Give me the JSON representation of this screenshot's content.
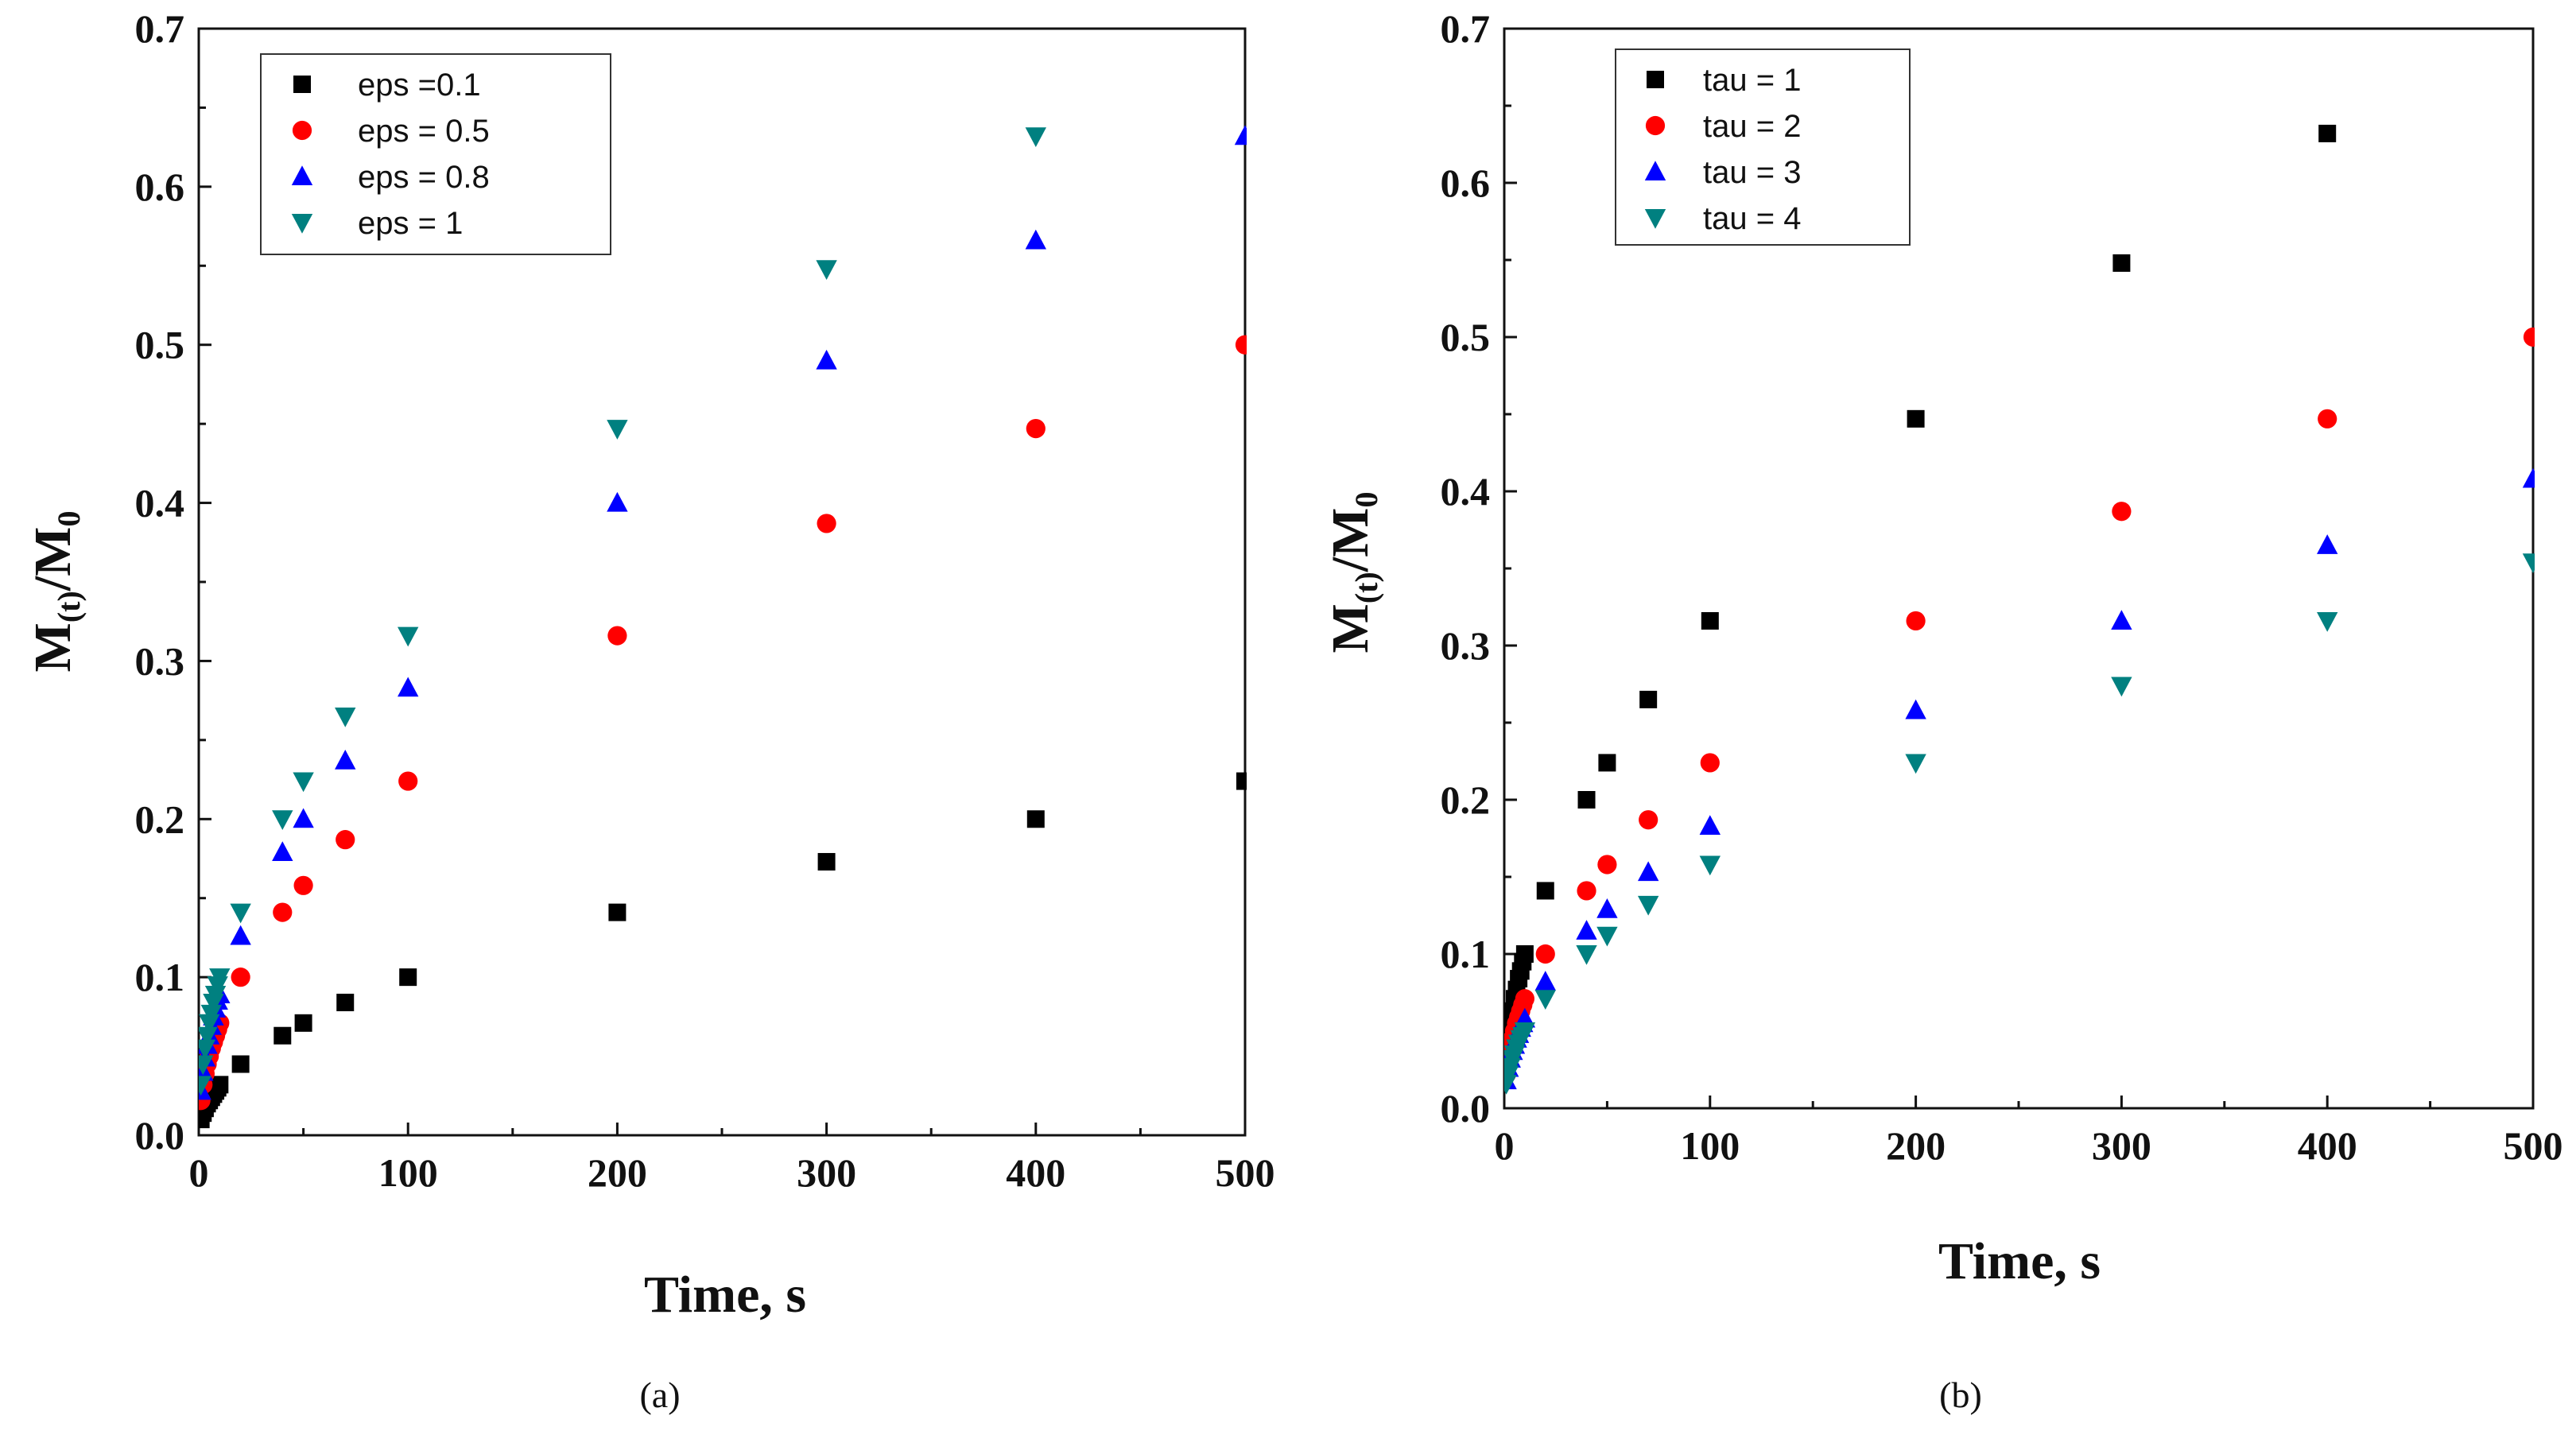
{
  "chart_data": [
    {
      "type": "scatter",
      "caption": "(a)",
      "xlabel": "Time, s",
      "ylabel": {
        "base": "M",
        "sub_num": "(t)",
        "slash": "/M",
        "sub_den": "0"
      },
      "xlim": [
        0,
        500
      ],
      "ylim": [
        0,
        0.7
      ],
      "xticks": [
        0,
        100,
        200,
        300,
        400,
        500
      ],
      "xtick_labels": [
        "0",
        "100",
        "200",
        "300",
        "400",
        "500"
      ],
      "yticks": [
        0,
        0.1,
        0.2,
        0.3,
        0.4,
        0.5,
        0.6,
        0.7
      ],
      "ytick_labels": [
        "0.0",
        "0.1",
        "0.2",
        "0.3",
        "0.4",
        "0.5",
        "0.6",
        "0.7"
      ],
      "legend_position": "top-left",
      "series": [
        {
          "name": "eps =0.1",
          "marker": "square",
          "color": "#000000",
          "x": [
            1,
            2,
            3,
            4,
            5,
            6,
            7,
            8,
            9,
            10,
            20,
            40,
            50,
            70,
            100,
            200,
            300,
            400,
            500
          ],
          "y": [
            0.01,
            0.014,
            0.017,
            0.02,
            0.022,
            0.024,
            0.026,
            0.028,
            0.03,
            0.032,
            0.045,
            0.063,
            0.071,
            0.084,
            0.1,
            0.141,
            0.173,
            0.2,
            0.224
          ]
        },
        {
          "name": "eps = 0.5",
          "marker": "circle",
          "color": "#ff0000",
          "x": [
            1,
            2,
            3,
            4,
            5,
            6,
            7,
            8,
            9,
            10,
            20,
            40,
            50,
            70,
            100,
            200,
            300,
            400,
            500
          ],
          "y": [
            0.022,
            0.032,
            0.039,
            0.045,
            0.05,
            0.055,
            0.059,
            0.063,
            0.067,
            0.071,
            0.1,
            0.141,
            0.158,
            0.187,
            0.224,
            0.316,
            0.387,
            0.447,
            0.5
          ]
        },
        {
          "name": "eps = 0.8",
          "marker": "triangle-up",
          "color": "#0000ff",
          "x": [
            1,
            2,
            3,
            4,
            5,
            6,
            7,
            8,
            9,
            10,
            20,
            40,
            50,
            70,
            100,
            200,
            300,
            400,
            500
          ],
          "y": [
            0.028,
            0.04,
            0.049,
            0.057,
            0.063,
            0.069,
            0.075,
            0.08,
            0.085,
            0.089,
            0.126,
            0.179,
            0.2,
            0.237,
            0.283,
            0.4,
            0.49,
            0.566,
            0.632
          ]
        },
        {
          "name": "eps = 1",
          "marker": "triangle-down",
          "color": "#008080",
          "x": [
            1,
            2,
            3,
            4,
            5,
            6,
            7,
            8,
            9,
            10,
            20,
            40,
            50,
            70,
            100,
            200,
            300,
            400
          ],
          "y": [
            0.032,
            0.045,
            0.055,
            0.063,
            0.071,
            0.077,
            0.084,
            0.089,
            0.095,
            0.1,
            0.141,
            0.2,
            0.224,
            0.265,
            0.316,
            0.447,
            0.548,
            0.632
          ]
        }
      ]
    },
    {
      "type": "scatter",
      "caption": "(b)",
      "xlabel": "Time, s",
      "ylabel": {
        "base": "M",
        "sub_num": "(t)",
        "slash": "/M",
        "sub_den": "0"
      },
      "xlim": [
        0,
        500
      ],
      "ylim": [
        0,
        0.7
      ],
      "xticks": [
        0,
        100,
        200,
        300,
        400,
        500
      ],
      "xtick_labels": [
        "0",
        "100",
        "200",
        "300",
        "400",
        "500"
      ],
      "yticks": [
        0,
        0.1,
        0.2,
        0.3,
        0.4,
        0.5,
        0.6,
        0.7
      ],
      "ytick_labels": [
        "0.0",
        "0.1",
        "0.2",
        "0.3",
        "0.4",
        "0.5",
        "0.6",
        "0.7"
      ],
      "legend_position": "top-left",
      "series": [
        {
          "name": "tau = 1",
          "marker": "square",
          "color": "#000000",
          "x": [
            1,
            2,
            3,
            4,
            5,
            6,
            7,
            8,
            9,
            10,
            20,
            40,
            50,
            70,
            100,
            200,
            300,
            400
          ],
          "y": [
            0.032,
            0.045,
            0.055,
            0.063,
            0.071,
            0.077,
            0.084,
            0.089,
            0.095,
            0.1,
            0.141,
            0.2,
            0.224,
            0.265,
            0.316,
            0.447,
            0.548,
            0.632
          ]
        },
        {
          "name": "tau = 2",
          "marker": "circle",
          "color": "#ff0000",
          "x": [
            1,
            2,
            3,
            4,
            5,
            6,
            7,
            8,
            9,
            10,
            20,
            40,
            50,
            70,
            100,
            200,
            300,
            400,
            500
          ],
          "y": [
            0.022,
            0.032,
            0.039,
            0.045,
            0.05,
            0.055,
            0.059,
            0.063,
            0.067,
            0.071,
            0.1,
            0.141,
            0.158,
            0.187,
            0.224,
            0.316,
            0.387,
            0.447,
            0.5
          ]
        },
        {
          "name": "tau = 3",
          "marker": "triangle-up",
          "color": "#0000ff",
          "x": [
            1,
            2,
            3,
            4,
            5,
            6,
            7,
            8,
            9,
            10,
            20,
            40,
            50,
            70,
            100,
            200,
            300,
            400,
            500
          ],
          "y": [
            0.018,
            0.026,
            0.032,
            0.037,
            0.041,
            0.045,
            0.048,
            0.052,
            0.055,
            0.058,
            0.082,
            0.115,
            0.129,
            0.153,
            0.183,
            0.258,
            0.316,
            0.365,
            0.408
          ]
        },
        {
          "name": "tau = 4",
          "marker": "triangle-down",
          "color": "#008080",
          "x": [
            1,
            2,
            3,
            4,
            5,
            6,
            7,
            8,
            9,
            10,
            20,
            40,
            50,
            70,
            100,
            200,
            300,
            400,
            500
          ],
          "y": [
            0.016,
            0.022,
            0.027,
            0.032,
            0.035,
            0.039,
            0.042,
            0.045,
            0.047,
            0.05,
            0.071,
            0.1,
            0.112,
            0.132,
            0.158,
            0.224,
            0.274,
            0.316,
            0.354
          ]
        }
      ]
    }
  ]
}
